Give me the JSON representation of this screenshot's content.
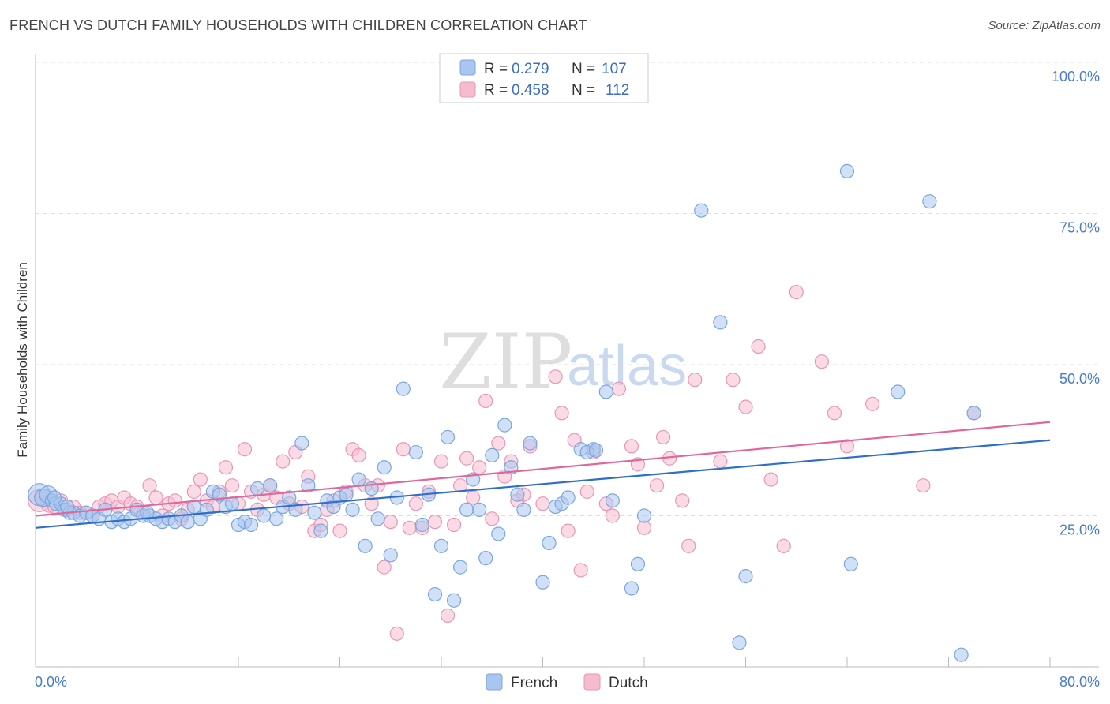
{
  "title": "FRENCH VS DUTCH FAMILY HOUSEHOLDS WITH CHILDREN CORRELATION CHART",
  "source": "Source: ZipAtlas.com",
  "watermark": {
    "zip": "ZIP",
    "atlas": "atlas"
  },
  "colors": {
    "french_fill": "#a9c6ef",
    "french_stroke": "#7aa6e0",
    "french_line": "#2f6fc9",
    "dutch_fill": "#f5bcd0",
    "dutch_stroke": "#e996b5",
    "dutch_line": "#e0679a",
    "value_blue": "#3a6fc4",
    "grid": "#dddddd"
  },
  "legend": {
    "french": {
      "r_label": "R = ",
      "r_value": "0.279",
      "n_label": "N = ",
      "n_value": "107"
    },
    "dutch": {
      "r_label": "R = ",
      "r_value": "0.458",
      "n_label": "N = ",
      "n_value": "112"
    }
  },
  "chart_data": {
    "type": "scatter",
    "ylabel": "Family Households with Children",
    "xlim": [
      0,
      80
    ],
    "ylim": [
      0,
      100
    ],
    "x_tick_labels": [
      "0.0%",
      "80.0%"
    ],
    "y_tick_labels": [
      "25.0%",
      "50.0%",
      "75.0%",
      "100.0%"
    ],
    "y_ticks": [
      25,
      50,
      75,
      100
    ],
    "x_ticks": [
      0,
      8,
      16,
      24,
      32,
      40,
      48,
      56,
      64,
      72,
      80
    ],
    "grid": true,
    "legend_position": "top-center",
    "series": [
      {
        "name": "French",
        "trend": {
          "x0": 0,
          "y0": 23.0,
          "x1": 80,
          "y1": 37.5
        },
        "points": [
          [
            0.3,
            28.5
          ],
          [
            0.6,
            28
          ],
          [
            1,
            28.5
          ],
          [
            1.3,
            27.5
          ],
          [
            1.6,
            27
          ],
          [
            2,
            27
          ],
          [
            2.3,
            26
          ],
          [
            2.7,
            25.5
          ],
          [
            3,
            25.5
          ],
          [
            3.5,
            25
          ],
          [
            4,
            25.5
          ],
          [
            4.5,
            25
          ],
          [
            5,
            24.5
          ],
          [
            5.5,
            26
          ],
          [
            6,
            24
          ],
          [
            6.5,
            24.5
          ],
          [
            7,
            24
          ],
          [
            7.5,
            24.5
          ],
          [
            8,
            26
          ],
          [
            8.5,
            25
          ],
          [
            9,
            25
          ],
          [
            9.5,
            24.5
          ],
          [
            10,
            24
          ],
          [
            10.5,
            24.5
          ],
          [
            11,
            24
          ],
          [
            11.5,
            25
          ],
          [
            12,
            24
          ],
          [
            12.5,
            26.5
          ],
          [
            13,
            24.5
          ],
          [
            13.5,
            26
          ],
          [
            14,
            29
          ],
          [
            14.5,
            28.5
          ],
          [
            15,
            26.5
          ],
          [
            15.5,
            27
          ],
          [
            16,
            23.5
          ],
          [
            16.5,
            24
          ],
          [
            17,
            23.5
          ],
          [
            17.5,
            29.5
          ],
          [
            18,
            25
          ],
          [
            18.5,
            30
          ],
          [
            19,
            24.5
          ],
          [
            19.5,
            26.5
          ],
          [
            20,
            28
          ],
          [
            20.5,
            26
          ],
          [
            21,
            37
          ],
          [
            21.5,
            30
          ],
          [
            22,
            25.5
          ],
          [
            22.5,
            22.5
          ],
          [
            23,
            27.5
          ],
          [
            23.5,
            26.5
          ],
          [
            24,
            28
          ],
          [
            24.5,
            28.5
          ],
          [
            25,
            26
          ],
          [
            25.5,
            31
          ],
          [
            26,
            20
          ],
          [
            26.5,
            29.5
          ],
          [
            27,
            24.5
          ],
          [
            27.5,
            33
          ],
          [
            28,
            18.5
          ],
          [
            28.5,
            28
          ],
          [
            29,
            46
          ],
          [
            30,
            35.5
          ],
          [
            30.5,
            23.5
          ],
          [
            31,
            28.5
          ],
          [
            31.5,
            12
          ],
          [
            32,
            20
          ],
          [
            32.5,
            38
          ],
          [
            33,
            11
          ],
          [
            33.5,
            16.5
          ],
          [
            34,
            26
          ],
          [
            34.5,
            31
          ],
          [
            35,
            26
          ],
          [
            35.5,
            18
          ],
          [
            36,
            35
          ],
          [
            36.5,
            22
          ],
          [
            37,
            40
          ],
          [
            37.5,
            33
          ],
          [
            38,
            28.5
          ],
          [
            38.5,
            26
          ],
          [
            39,
            37
          ],
          [
            40,
            14
          ],
          [
            40.5,
            20.5
          ],
          [
            41,
            26.5
          ],
          [
            41.5,
            27
          ],
          [
            42,
            28
          ],
          [
            43,
            36
          ],
          [
            44,
            36
          ],
          [
            45,
            45.5
          ],
          [
            45.5,
            27.5
          ],
          [
            47,
            13
          ],
          [
            47.5,
            17
          ],
          [
            48,
            25
          ],
          [
            52.5,
            75.5
          ],
          [
            54,
            57
          ],
          [
            55.5,
            4
          ],
          [
            56,
            15
          ],
          [
            64,
            82
          ],
          [
            64.3,
            17
          ],
          [
            68,
            45.5
          ],
          [
            70.5,
            77
          ],
          [
            73,
            2
          ],
          [
            74,
            42
          ],
          [
            43.5,
            35.5
          ],
          [
            44.2,
            35.8
          ],
          [
            1.5,
            28
          ],
          [
            2.5,
            26.5
          ],
          [
            8.8,
            25.5
          ]
        ]
      },
      {
        "name": "Dutch",
        "trend": {
          "x0": 0,
          "y0": 25.0,
          "x1": 80,
          "y1": 40.5
        },
        "points": [
          [
            0.3,
            27.5
          ],
          [
            0.7,
            28
          ],
          [
            1.1,
            27
          ],
          [
            1.5,
            26.5
          ],
          [
            2,
            27.5
          ],
          [
            2.5,
            26
          ],
          [
            3,
            26.5
          ],
          [
            3.5,
            25.5
          ],
          [
            4,
            25.5
          ],
          [
            4.5,
            25
          ],
          [
            5,
            26.5
          ],
          [
            5.5,
            27
          ],
          [
            6,
            27.5
          ],
          [
            6.5,
            26.5
          ],
          [
            7,
            28
          ],
          [
            7.5,
            27
          ],
          [
            8,
            26.5
          ],
          [
            8.5,
            25.5
          ],
          [
            9,
            30
          ],
          [
            9.5,
            28
          ],
          [
            10,
            25
          ],
          [
            10.5,
            27
          ],
          [
            11,
            27.5
          ],
          [
            11.5,
            24.5
          ],
          [
            12,
            26
          ],
          [
            12.5,
            29
          ],
          [
            13,
            31
          ],
          [
            13.5,
            27.5
          ],
          [
            14,
            26.5
          ],
          [
            14.5,
            29
          ],
          [
            15,
            33
          ],
          [
            15.5,
            30
          ],
          [
            16,
            27
          ],
          [
            16.5,
            36
          ],
          [
            17,
            29
          ],
          [
            17.5,
            26
          ],
          [
            18,
            28.5
          ],
          [
            18.5,
            30
          ],
          [
            19,
            28
          ],
          [
            19.5,
            34
          ],
          [
            20,
            27
          ],
          [
            20.5,
            35.5
          ],
          [
            21,
            26.5
          ],
          [
            21.5,
            31.5
          ],
          [
            22,
            22.5
          ],
          [
            22.5,
            23.5
          ],
          [
            23,
            26
          ],
          [
            23.5,
            27.5
          ],
          [
            24,
            22.5
          ],
          [
            24.5,
            29
          ],
          [
            25,
            36
          ],
          [
            25.5,
            35
          ],
          [
            26,
            30
          ],
          [
            26.5,
            27
          ],
          [
            27,
            30
          ],
          [
            27.5,
            16.5
          ],
          [
            28,
            24
          ],
          [
            28.5,
            5.5
          ],
          [
            29,
            36
          ],
          [
            29.5,
            23
          ],
          [
            30,
            27
          ],
          [
            30.5,
            23
          ],
          [
            31,
            29
          ],
          [
            31.5,
            24
          ],
          [
            32,
            34
          ],
          [
            32.5,
            8.5
          ],
          [
            33,
            23.5
          ],
          [
            33.5,
            30
          ],
          [
            34,
            34.5
          ],
          [
            34.5,
            28
          ],
          [
            35,
            33
          ],
          [
            35.5,
            44
          ],
          [
            36,
            24.5
          ],
          [
            36.5,
            37
          ],
          [
            37,
            31.5
          ],
          [
            37.5,
            34
          ],
          [
            38,
            27.5
          ],
          [
            38.5,
            28.5
          ],
          [
            39,
            36.5
          ],
          [
            40,
            27
          ],
          [
            41,
            48
          ],
          [
            41.5,
            42
          ],
          [
            42,
            22.5
          ],
          [
            42.5,
            37.5
          ],
          [
            43,
            16
          ],
          [
            43.5,
            29
          ],
          [
            44,
            35.5
          ],
          [
            45,
            27
          ],
          [
            45.5,
            25
          ],
          [
            46,
            46
          ],
          [
            47,
            36.5
          ],
          [
            47.5,
            33.5
          ],
          [
            48,
            23
          ],
          [
            49,
            30
          ],
          [
            49.5,
            38
          ],
          [
            50,
            34.5
          ],
          [
            51,
            27.5
          ],
          [
            51.5,
            20
          ],
          [
            52,
            47.5
          ],
          [
            54,
            34
          ],
          [
            55,
            47.5
          ],
          [
            56,
            43
          ],
          [
            57,
            53
          ],
          [
            58,
            31
          ],
          [
            59,
            20
          ],
          [
            60,
            62
          ],
          [
            62,
            50.5
          ],
          [
            63,
            42
          ],
          [
            64,
            36.5
          ],
          [
            66,
            43.5
          ],
          [
            70,
            30
          ],
          [
            74,
            42
          ]
        ]
      }
    ]
  },
  "bottom_legend": {
    "french": "French",
    "dutch": "Dutch"
  }
}
